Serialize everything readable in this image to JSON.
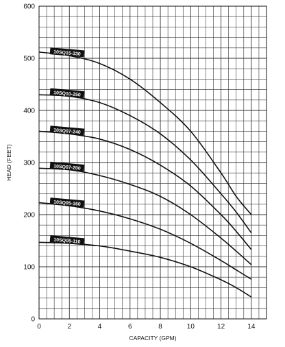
{
  "chart_data": {
    "type": "line",
    "title": "",
    "xlabel": "CAPACITY (GPM)",
    "ylabel": "HEAD (FEET)",
    "xlim": [
      0,
      15
    ],
    "ylim": [
      0,
      600
    ],
    "x_ticks": [
      0,
      2,
      4,
      6,
      8,
      10,
      12,
      14
    ],
    "y_ticks": [
      0,
      100,
      200,
      300,
      400,
      500,
      600
    ],
    "x_tick_labels": [
      "0",
      "2",
      "4",
      "6",
      "8",
      "10",
      "12",
      "14"
    ],
    "y_tick_labels": [
      "0",
      "100",
      "200",
      "300",
      "400",
      "500",
      "600"
    ],
    "grid": true,
    "legend": "none (series labeled inline on curves)",
    "colors": {
      "line": "#111111",
      "grid": "#333333",
      "label_bg": "#111111",
      "label_text": "#ffffff"
    },
    "series": [
      {
        "name": "10SQ15-330",
        "x": [
          0,
          2,
          4,
          6,
          8,
          10,
          12,
          13,
          14
        ],
        "y": [
          512,
          505,
          490,
          460,
          415,
          360,
          280,
          235,
          200
        ]
      },
      {
        "name": "10SQ10-250",
        "x": [
          0,
          2,
          4,
          6,
          8,
          10,
          12,
          13,
          14
        ],
        "y": [
          430,
          427,
          415,
          390,
          355,
          305,
          240,
          205,
          165
        ]
      },
      {
        "name": "10SQ07-240",
        "x": [
          0,
          2,
          4,
          6,
          8,
          10,
          12,
          13,
          14
        ],
        "y": [
          360,
          355,
          345,
          325,
          295,
          255,
          200,
          168,
          133
        ]
      },
      {
        "name": "10SQ07-200",
        "x": [
          0,
          2,
          4,
          6,
          8,
          10,
          12,
          13,
          14
        ],
        "y": [
          289,
          286,
          275,
          258,
          235,
          200,
          155,
          130,
          104
        ]
      },
      {
        "name": "10SQ05-160",
        "x": [
          0,
          2,
          4,
          6,
          8,
          10,
          12,
          13,
          14
        ],
        "y": [
          223,
          217,
          207,
          192,
          172,
          145,
          112,
          94,
          76
        ]
      },
      {
        "name": "10SQ05-110",
        "x": [
          0,
          2,
          4,
          6,
          8,
          10,
          12,
          13,
          14
        ],
        "y": [
          147,
          145,
          140,
          130,
          118,
          100,
          75,
          60,
          42
        ]
      }
    ],
    "annotations": [
      {
        "text": "10SQ15-330",
        "series": "10SQ15-330",
        "x": 1.3
      },
      {
        "text": "10SQ10-250",
        "series": "10SQ10-250",
        "x": 1.3
      },
      {
        "text": "10SQ07-240",
        "series": "10SQ07-240",
        "x": 1.3
      },
      {
        "text": "10SQ07-200",
        "series": "10SQ07-200",
        "x": 1.3
      },
      {
        "text": "10SQ05-160",
        "series": "10SQ05-160",
        "x": 1.3
      },
      {
        "text": "10SQ05-110",
        "series": "10SQ05-110",
        "x": 1.3
      }
    ]
  }
}
